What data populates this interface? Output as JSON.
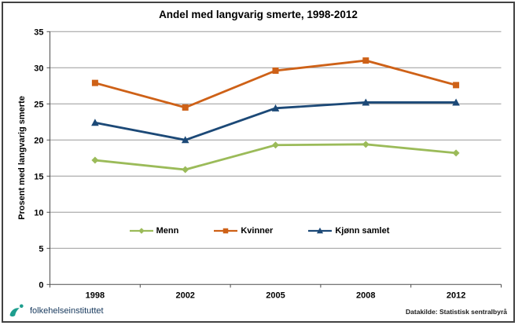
{
  "figure": {
    "footer": {
      "logo_text": "folkehelseinstituttet",
      "logo_color": "#1E9E8E",
      "logo_text_color": "#17395D",
      "source_label": "Datakilde: Statistisk sentralbyrå"
    }
  },
  "chart_data": {
    "type": "line",
    "title": "Andel med langvarig smerte, 1998-2012",
    "xlabel": "",
    "ylabel": "Prosent med langvarig smerte",
    "categories": [
      "1998",
      "2002",
      "2005",
      "2008",
      "2012"
    ],
    "series": [
      {
        "name": "Menn",
        "marker": "diamond",
        "color": "#9BBB59",
        "values": [
          17.2,
          15.9,
          19.3,
          19.4,
          18.2
        ]
      },
      {
        "name": "Kvinner",
        "marker": "square",
        "color": "#CE6117",
        "values": [
          27.9,
          24.5,
          29.6,
          31.0,
          27.6
        ]
      },
      {
        "name": "Kjønn samlet",
        "marker": "triangle",
        "color": "#1C4977",
        "values": [
          22.4,
          20.0,
          24.4,
          25.2,
          25.2
        ]
      }
    ],
    "ylim": [
      0,
      35
    ],
    "y_ticks": [
      0,
      5,
      10,
      15,
      20,
      25,
      30,
      35
    ],
    "grid": "horizontal",
    "grid_color": "#999999",
    "axis_color": "#4d4d4d",
    "legend_position": "inside-bottom"
  }
}
